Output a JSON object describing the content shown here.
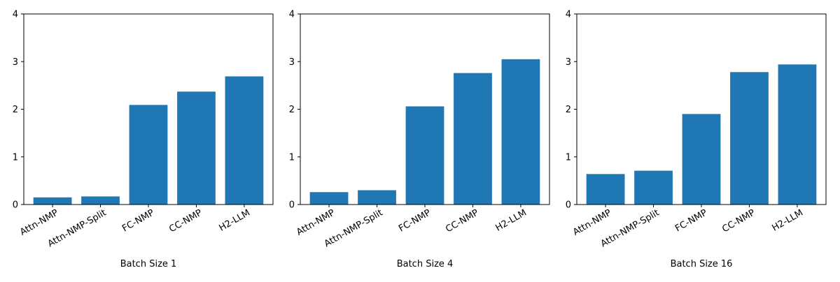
{
  "colors": {
    "bar": "#1f77b4",
    "axis": "#000000",
    "background": "#ffffff"
  },
  "chart_data": [
    {
      "type": "bar",
      "title": "",
      "xlabel": "Batch Size 1",
      "ylabel": "",
      "ylim": [
        0,
        4
      ],
      "yticks": [
        "0",
        "1",
        "2",
        "3",
        "4"
      ],
      "categories": [
        "Attn-NMP",
        "Attn-NMP-Split",
        "FC-NMP",
        "CC-NMP",
        "H2-LLM"
      ],
      "values": [
        0.15,
        0.17,
        2.09,
        2.37,
        2.69
      ],
      "grid": false
    },
    {
      "type": "bar",
      "title": "",
      "xlabel": "Batch Size 4",
      "ylabel": "",
      "ylim": [
        0,
        4
      ],
      "yticks": [
        "0",
        "1",
        "2",
        "3",
        "4"
      ],
      "categories": [
        "Attn-NMP",
        "Attn-NMP-Split",
        "FC-NMP",
        "CC-NMP",
        "H2-LLM"
      ],
      "values": [
        0.26,
        0.3,
        2.06,
        2.76,
        3.05
      ],
      "grid": false
    },
    {
      "type": "bar",
      "title": "",
      "xlabel": "Batch Size 16",
      "ylabel": "",
      "ylim": [
        0,
        4
      ],
      "yticks": [
        "0",
        "1",
        "2",
        "3",
        "4"
      ],
      "categories": [
        "Attn-NMP",
        "Attn-NMP-Split",
        "FC-NMP",
        "CC-NMP",
        "H2-LLM"
      ],
      "values": [
        0.64,
        0.71,
        1.9,
        2.78,
        2.94
      ],
      "grid": false
    }
  ]
}
